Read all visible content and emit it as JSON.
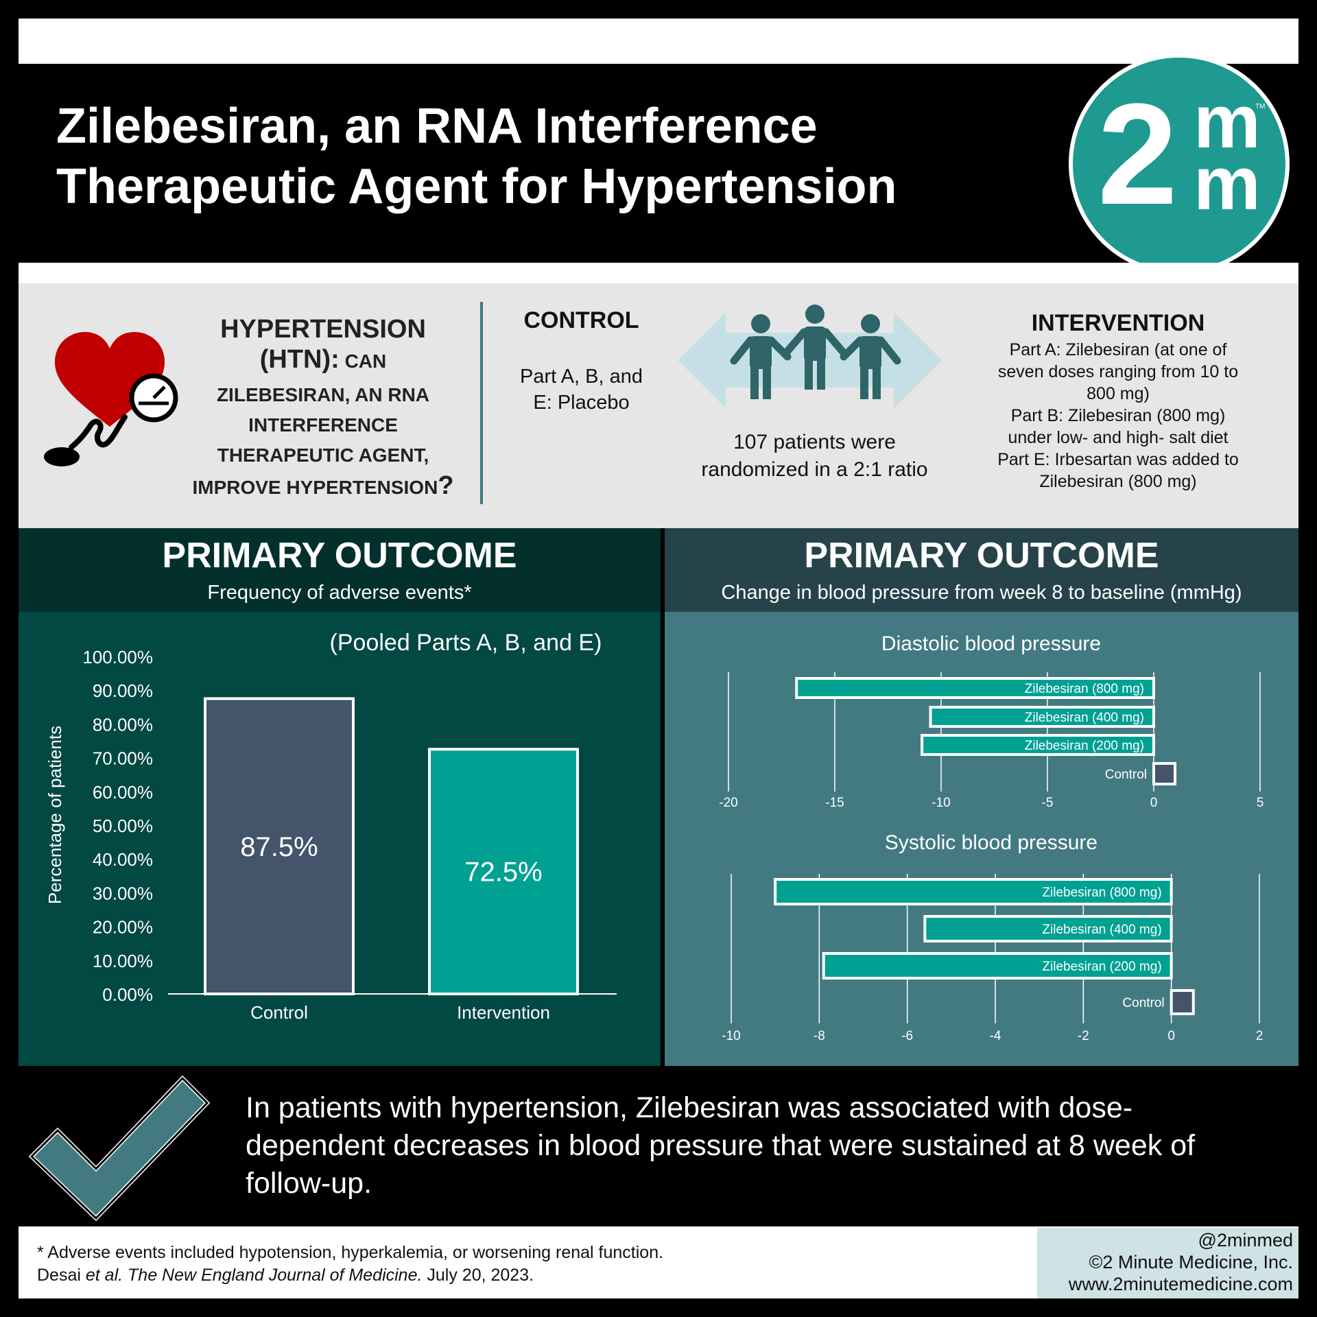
{
  "title": "Zilebesiran, an RNA Interference\nTherapeutic Agent for Hypertension",
  "logo": {
    "main": "2",
    "sup": "m",
    "sub": "m",
    "tm": "TM"
  },
  "question": {
    "line1": "HYPERTENSION",
    "line2": "(HTN):",
    "line2b": " CAN",
    "line3": "ZILEBESIRAN, AN RNA",
    "line4": "INTERFERENCE",
    "line5": "THERAPEUTIC AGENT,",
    "line6": "IMPROVE HYPERTENSION",
    "line6q": "?"
  },
  "control": {
    "heading": "CONTROL",
    "body": "Part A, B, and\nE: Placebo"
  },
  "patients": "107 patients were\nrandomized in a 2:1 ratio",
  "intervention": {
    "heading": "INTERVENTION",
    "body": "Part A: Zilebesiran (at one of\nseven doses ranging from 10 to\n800 mg)\nPart B: Zilebesiran (800 mg)\nunder low- and high- salt diet\nPart E: Irbesartan was added to\nZilebesiran (800 mg)"
  },
  "left_outcome": {
    "title": "PRIMARY OUTCOME",
    "subtitle": "Frequency of adverse events*"
  },
  "right_outcome": {
    "title": "PRIMARY OUTCOME",
    "subtitle": "Change in blood pressure from week 8 to baseline (mmHg)"
  },
  "colors": {
    "control": "#43546b",
    "intervention": "#00a193",
    "teal_dark": "#024843",
    "heart": "#c00000"
  },
  "chart_data": [
    {
      "type": "bar",
      "title": "(Pooled Parts A, B, and E)",
      "ylabel": "Percentage of patients",
      "categories": [
        "Control",
        "Intervention"
      ],
      "values": [
        87.5,
        72.5
      ],
      "data_labels": [
        "87.5%",
        "72.5%"
      ],
      "ylim": [
        0,
        100
      ],
      "yticks": [
        "0.00%",
        "10.00%",
        "20.00%",
        "30.00%",
        "40.00%",
        "50.00%",
        "60.00%",
        "70.00%",
        "80.00%",
        "90.00%",
        "100.00%"
      ]
    },
    {
      "type": "bar",
      "orientation": "horizontal",
      "title": "Diastolic blood pressure",
      "categories": [
        "Zilebesiran (800 mg)",
        "Zilebesiran (400 mg)",
        "Zilebesiran (200 mg)",
        "Control"
      ],
      "values": [
        -16.8,
        -10.5,
        -10.9,
        1.0
      ],
      "xlim": [
        -20,
        5
      ],
      "xticks": [
        "-20",
        "-15",
        "-10",
        "-5",
        "0",
        "5"
      ],
      "grid": true
    },
    {
      "type": "bar",
      "orientation": "horizontal",
      "title": "Systolic blood pressure",
      "categories": [
        "Zilebesiran (800 mg)",
        "Zilebesiran (400 mg)",
        "Zilebesiran (200 mg)",
        "Control"
      ],
      "values": [
        -9.0,
        -5.6,
        -7.9,
        0.5
      ],
      "xlim": [
        -10,
        2
      ],
      "xticks": [
        "-10",
        "-8",
        "-6",
        "-4",
        "-2",
        "0",
        "2"
      ],
      "grid": true
    }
  ],
  "conclusion": "In patients with hypertension, Zilebesiran was associated with dose-dependent decreases in blood pressure that were sustained at 8 week of follow-up.",
  "footer": {
    "note": "* Adverse events included hypotension, hyperkalemia, or worsening renal function.",
    "cite_author": "Desai ",
    "cite_etal": "et al.",
    "cite_journal": " The New England Journal of Medicine.",
    "cite_date": " July 20, 2023."
  },
  "credits": {
    "handle": "@2minmed",
    "copyright": "©2 Minute Medicine, Inc.",
    "url": "www.2minutemedicine.com"
  }
}
